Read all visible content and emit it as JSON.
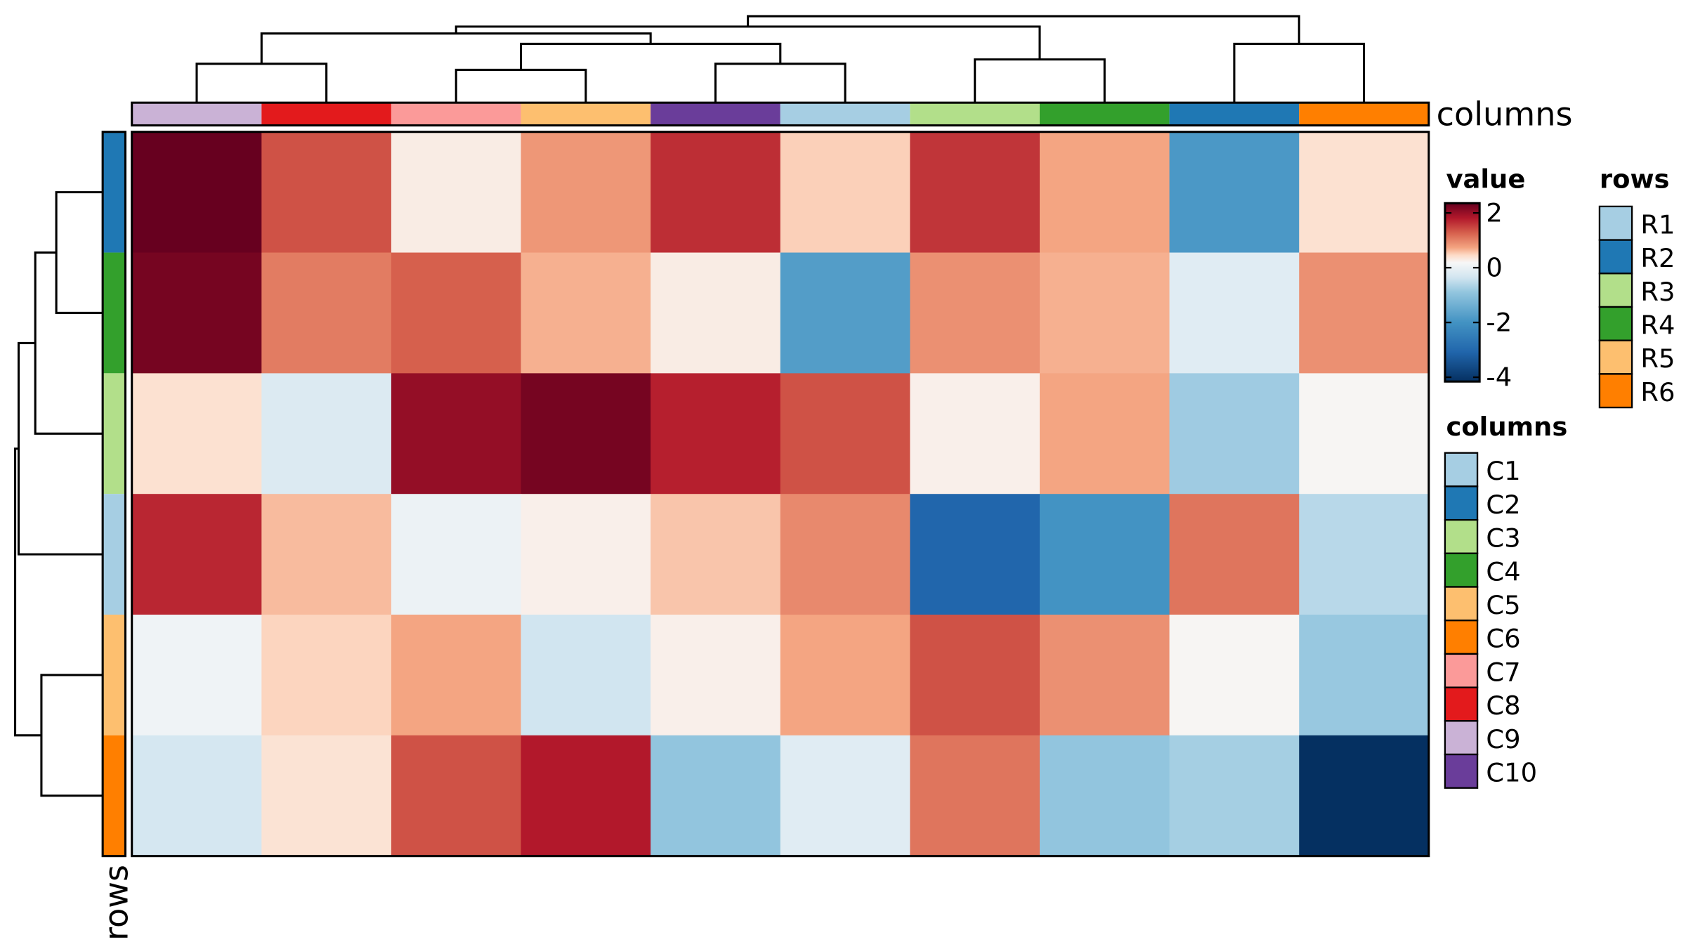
{
  "chart_data": {
    "type": "heatmap",
    "title": "",
    "row_order": [
      "R2",
      "R4",
      "R3",
      "R1",
      "R5",
      "R6"
    ],
    "column_order": [
      "C9",
      "C8",
      "C7",
      "C5",
      "C10",
      "C1",
      "C3",
      "C4",
      "C2",
      "C6"
    ],
    "values": [
      [
        2.0,
        1.1,
        0.1,
        0.6,
        1.35,
        0.3,
        1.3,
        0.5,
        -1.9,
        0.2
      ],
      [
        1.9,
        0.8,
        1.0,
        0.45,
        0.1,
        -1.8,
        0.65,
        0.45,
        -0.3,
        0.65
      ],
      [
        0.2,
        -0.35,
        1.7,
        1.9,
        1.45,
        1.1,
        0.07,
        0.5,
        -0.9,
        0.02
      ],
      [
        1.4,
        0.4,
        -0.15,
        0.07,
        0.35,
        0.7,
        -3.0,
        -2.0,
        0.85,
        -0.7
      ],
      [
        -0.1,
        0.28,
        0.5,
        -0.5,
        0.07,
        0.5,
        1.1,
        0.65,
        0.02,
        -0.95
      ],
      [
        -0.45,
        0.18,
        1.1,
        1.5,
        -1.0,
        -0.3,
        0.85,
        -1.0,
        -0.85,
        -4.0
      ]
    ],
    "color_scale": {
      "title": "value",
      "range": [
        -4,
        2
      ],
      "ticks": [
        "2",
        "0",
        "-2",
        "-4"
      ],
      "tick_values": [
        2,
        0,
        -2,
        -4
      ],
      "stops": [
        [
          -4,
          "#053061"
        ],
        [
          -3,
          "#2166AC"
        ],
        [
          -2,
          "#4393C3"
        ],
        [
          -1,
          "#92C5DE"
        ],
        [
          -0.5,
          "#D1E5F0"
        ],
        [
          0,
          "#F7F7F7"
        ],
        [
          0.25,
          "#FDDBC7"
        ],
        [
          0.5,
          "#F4A582"
        ],
        [
          1,
          "#D6604D"
        ],
        [
          1.5,
          "#B2182B"
        ],
        [
          2,
          "#67001F"
        ]
      ]
    },
    "row_annotation": {
      "label": "rows",
      "legend_title": "rows",
      "levels": [
        "R1",
        "R2",
        "R3",
        "R4",
        "R5",
        "R6"
      ],
      "colors": {
        "R1": "#A6CEE3",
        "R2": "#1F78B4",
        "R3": "#B2DF8A",
        "R4": "#33A02C",
        "R5": "#FDBF6F",
        "R6": "#FF7F00"
      }
    },
    "column_annotation": {
      "label": "columns",
      "legend_title": "columns",
      "levels": [
        "C1",
        "C2",
        "C3",
        "C4",
        "C5",
        "C6",
        "C7",
        "C8",
        "C9",
        "C10"
      ],
      "colors": {
        "C1": "#A6CEE3",
        "C2": "#1F78B4",
        "C3": "#B2DF8A",
        "C4": "#33A02C",
        "C5": "#FDBF6F",
        "C6": "#FF7F00",
        "C7": "#FB9A99",
        "C8": "#E31A1C",
        "C9": "#CAB2D6",
        "C10": "#6A3D9A"
      }
    },
    "column_dendrogram": [
      [
        0,
        1,
        0.45
      ],
      [
        2,
        3,
        0.38
      ],
      [
        4,
        5,
        0.45
      ],
      [
        6,
        7,
        0.5
      ],
      [
        8,
        9,
        0.68
      ],
      [
        "2-3",
        "4-5",
        0.68
      ],
      [
        "0-1",
        "2-5",
        0.8
      ],
      [
        "0-5",
        "6-7",
        0.88
      ],
      [
        "0-7",
        "8-9",
        1.0
      ]
    ],
    "row_dendrogram": [
      [
        0,
        1,
        0.53
      ],
      [
        "0-1",
        2,
        0.77
      ],
      [
        "0-2",
        3,
        0.96
      ],
      [
        4,
        5,
        0.7
      ],
      [
        "0-3",
        "4-5",
        1.0
      ]
    ]
  }
}
